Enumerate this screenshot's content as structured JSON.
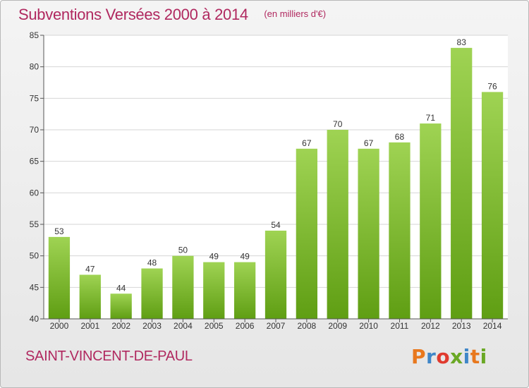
{
  "header": {
    "title": "Subventions Versées 2000 à 2014",
    "unit": "(en milliers d'€)"
  },
  "commune": "SAINT-VINCENT-DE-PAUL",
  "logo": {
    "text": "Proxiti",
    "letter_colors": [
      "#e8781e",
      "#3f86c8",
      "#e03a2e",
      "#6aa825",
      "#3f86c8",
      "#e8781e",
      "#6aa825"
    ]
  },
  "chart_data": {
    "type": "bar",
    "categories": [
      "2000",
      "2001",
      "2002",
      "2003",
      "2004",
      "2005",
      "2006",
      "2007",
      "2008",
      "2009",
      "2010",
      "2011",
      "2012",
      "2013",
      "2014"
    ],
    "values": [
      53,
      47,
      44,
      48,
      50,
      49,
      49,
      54,
      67,
      70,
      67,
      68,
      71,
      83,
      76
    ],
    "ylim": [
      40,
      85
    ],
    "yticks": [
      40,
      45,
      50,
      55,
      60,
      65,
      70,
      75,
      80,
      85
    ],
    "grid": true,
    "bar_color_top": "#9fd353",
    "bar_color_bottom": "#5f9e13"
  }
}
